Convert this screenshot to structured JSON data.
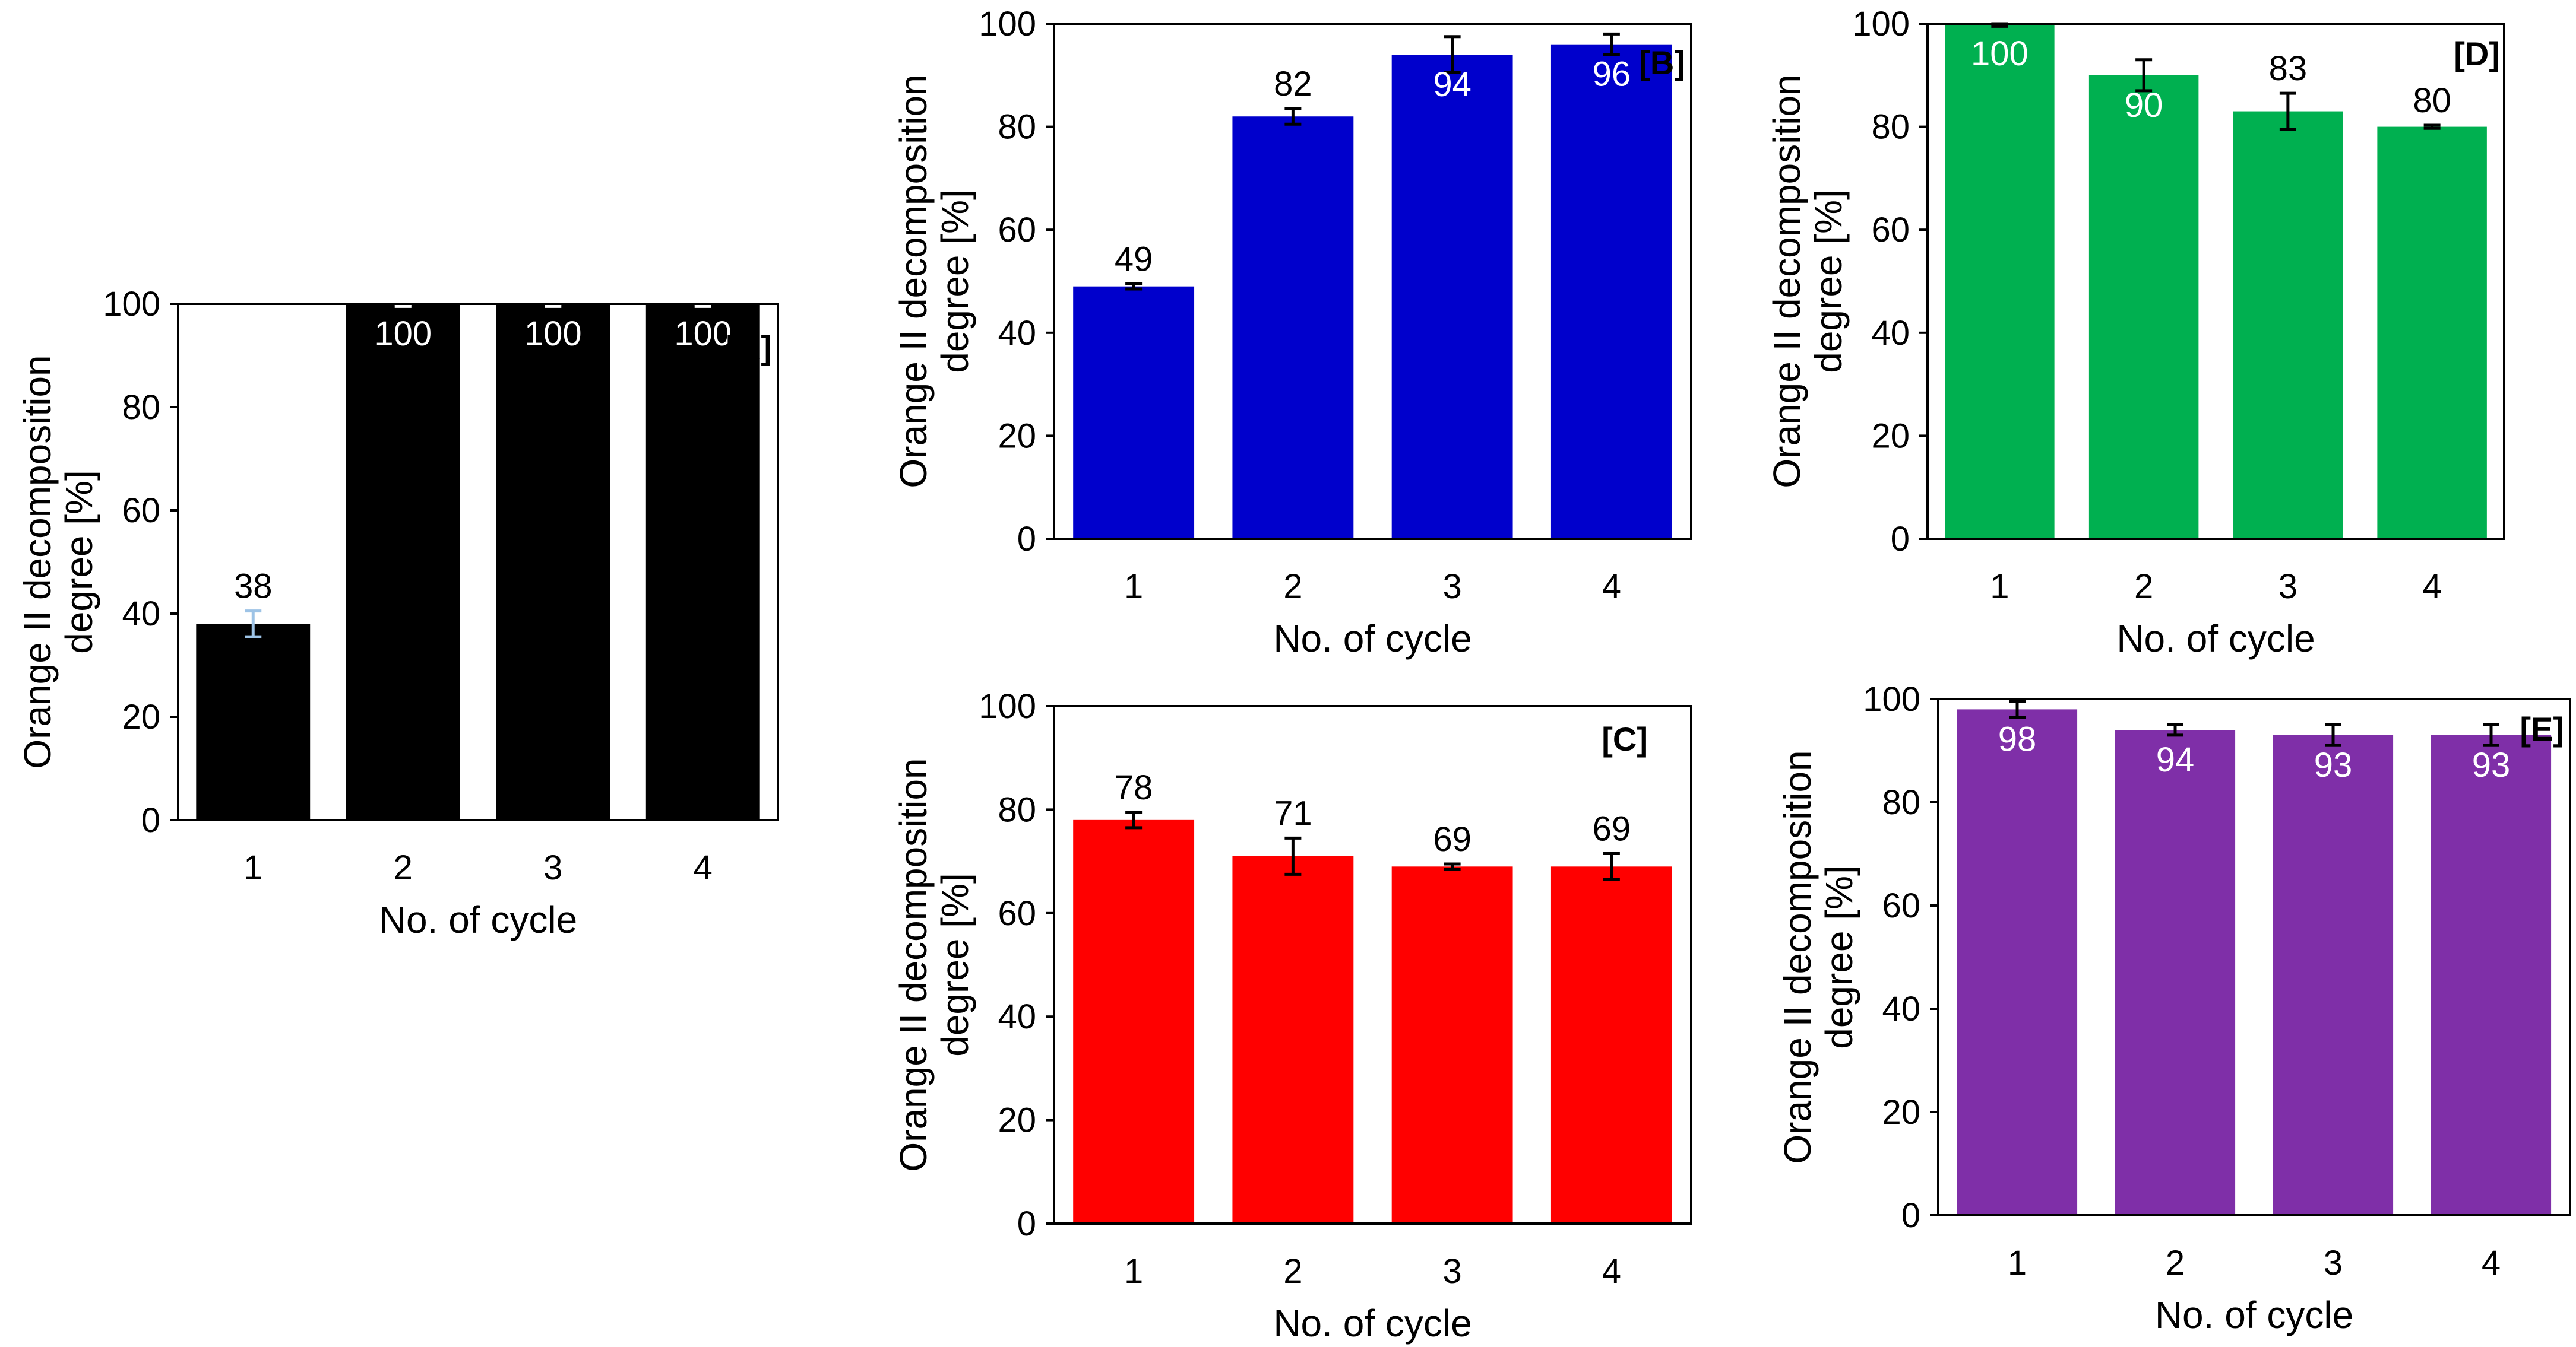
{
  "figure": {
    "description_free": true
  },
  "chart_data": [
    {
      "id": "A",
      "type": "bar",
      "panel_label": "[A]",
      "categories": [
        "1",
        "2",
        "3",
        "4"
      ],
      "values": [
        38,
        100,
        100,
        100
      ],
      "errors": [
        2.5,
        0.5,
        0.5,
        0.5
      ],
      "data_labels": [
        "38",
        "100",
        "100",
        "100"
      ],
      "label_inside": [
        false,
        true,
        true,
        true
      ],
      "bar_color": "#000000",
      "error_color_first": "#9dc3e6",
      "error_color": "#ffffff",
      "xlabel": "No. of cycle",
      "ylabel_line1": "Orange II decomposition",
      "ylabel_line2": "degree [%]",
      "ylim": [
        0,
        100
      ],
      "yticks": [
        "0",
        "20",
        "40",
        "60",
        "80",
        "100"
      ]
    },
    {
      "id": "B",
      "type": "bar",
      "panel_label": "[B]",
      "categories": [
        "1",
        "2",
        "3",
        "4"
      ],
      "values": [
        49,
        82,
        94,
        96
      ],
      "errors": [
        0.5,
        1.5,
        3.5,
        2.0
      ],
      "data_labels": [
        "49",
        "82",
        "94",
        "96"
      ],
      "label_inside": [
        false,
        false,
        true,
        true
      ],
      "bar_color": "#0000cc",
      "error_color": "#000000",
      "xlabel": "No. of cycle",
      "ylabel_line1": "Orange II decomposition",
      "ylabel_line2": "degree [%]",
      "ylim": [
        0,
        100
      ],
      "yticks": [
        "0",
        "20",
        "40",
        "60",
        "80",
        "100"
      ]
    },
    {
      "id": "C",
      "type": "bar",
      "panel_label": "[C]",
      "categories": [
        "1",
        "2",
        "3",
        "4"
      ],
      "values": [
        78,
        71,
        69,
        69
      ],
      "errors": [
        1.5,
        3.5,
        0.5,
        2.5
      ],
      "data_labels": [
        "78",
        "71",
        "69",
        "69"
      ],
      "label_inside": [
        false,
        false,
        false,
        false
      ],
      "bar_color": "#ff0000",
      "error_color": "#000000",
      "xlabel": "No. of cycle",
      "ylabel_line1": "Orange II decomposition",
      "ylabel_line2": "degree [%]",
      "ylim": [
        0,
        100
      ],
      "yticks": [
        "0",
        "20",
        "40",
        "60",
        "80",
        "100"
      ]
    },
    {
      "id": "D",
      "type": "bar",
      "panel_label": "[D]",
      "categories": [
        "1",
        "2",
        "3",
        "4"
      ],
      "values": [
        100,
        90,
        83,
        80
      ],
      "errors": [
        0.5,
        3.0,
        3.5,
        0.3
      ],
      "data_labels": [
        "100",
        "90",
        "83",
        "80"
      ],
      "label_inside": [
        true,
        true,
        false,
        false
      ],
      "bar_color": "#00b050",
      "error_color": "#000000",
      "xlabel": "No. of cycle",
      "ylabel_line1": "Orange II decomposition",
      "ylabel_line2": "degree [%]",
      "ylim": [
        0,
        100
      ],
      "yticks": [
        "0",
        "20",
        "40",
        "60",
        "80",
        "100"
      ]
    },
    {
      "id": "E",
      "type": "bar",
      "panel_label": "[E]",
      "categories": [
        "1",
        "2",
        "3",
        "4"
      ],
      "values": [
        98,
        94,
        93,
        93
      ],
      "errors": [
        1.5,
        1.0,
        2.0,
        2.0
      ],
      "data_labels": [
        "98",
        "94",
        "93",
        "93"
      ],
      "label_inside": [
        true,
        true,
        true,
        true
      ],
      "bar_color": "#7f2fa8",
      "error_color": "#000000",
      "xlabel": "No. of cycle",
      "ylabel_line1": "Orange II decomposition",
      "ylabel_line2": "degree [%]",
      "ylim": [
        0,
        100
      ],
      "yticks": [
        "0",
        "20",
        "40",
        "60",
        "80",
        "100"
      ]
    }
  ]
}
